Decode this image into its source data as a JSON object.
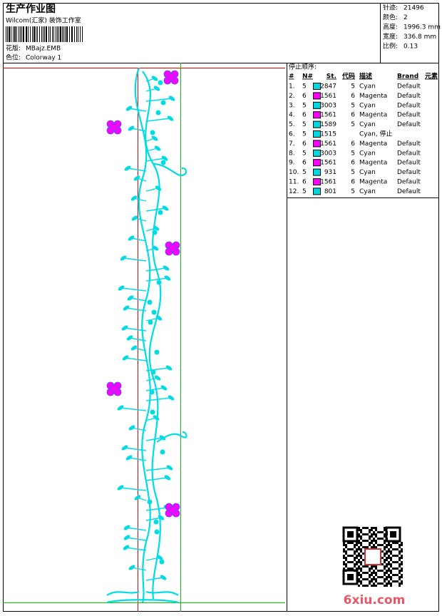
{
  "header": {
    "title": "生产作业图",
    "subtitle": "Wilcom(汇家) 装饰工作室",
    "design_file_label": "花版:",
    "design_file": "MBajz.EMB",
    "colorway_label": "色位:",
    "colorway": "Colorway 1"
  },
  "stats": [
    {
      "label": "针迹:",
      "value": "21496"
    },
    {
      "label": "颜色:",
      "value": "2"
    },
    {
      "label": "高度:",
      "value": "1996.3 mm"
    },
    {
      "label": "宽度:",
      "value": "336.8 mm"
    },
    {
      "label": "比例:",
      "value": "0.13"
    }
  ],
  "stop_sequence": {
    "title": "停止顺序:",
    "columns": [
      "#",
      "N#",
      "St.",
      "代码",
      "描述",
      "Brand",
      "元素"
    ],
    "rows": [
      {
        "no": "1.",
        "n": "5",
        "swatch": "#00d8e0",
        "st": "2847",
        "code": "5",
        "desc": "Cyan",
        "brand": "Default"
      },
      {
        "no": "2.",
        "n": "6",
        "swatch": "#ff00ff",
        "st": "1561",
        "code": "6",
        "desc": "Magenta",
        "brand": "Default"
      },
      {
        "no": "3.",
        "n": "5",
        "swatch": "#00d8e0",
        "st": "3003",
        "code": "5",
        "desc": "Cyan",
        "brand": "Default"
      },
      {
        "no": "4.",
        "n": "6",
        "swatch": "#ff00ff",
        "st": "1561",
        "code": "6",
        "desc": "Magenta",
        "brand": "Default"
      },
      {
        "no": "5.",
        "n": "5",
        "swatch": "#00d8e0",
        "st": "1589",
        "code": "5",
        "desc": "Cyan",
        "brand": "Default"
      },
      {
        "no": "6.",
        "n": "5",
        "swatch": "#00d8e0",
        "st": "1515",
        "desc": "Cyan, 停止"
      },
      {
        "no": "7.",
        "n": "6",
        "swatch": "#ff00ff",
        "st": "1561",
        "code": "6",
        "desc": "Magenta",
        "brand": "Default"
      },
      {
        "no": "8.",
        "n": "5",
        "swatch": "#00d8e0",
        "st": "3003",
        "code": "5",
        "desc": "Cyan",
        "brand": "Default"
      },
      {
        "no": "9.",
        "n": "6",
        "swatch": "#ff00ff",
        "st": "1561",
        "code": "6",
        "desc": "Magenta",
        "brand": "Default"
      },
      {
        "no": "10.",
        "n": "5",
        "swatch": "#00d8e0",
        "st": "931",
        "code": "5",
        "desc": "Cyan",
        "brand": "Default"
      },
      {
        "no": "11.",
        "n": "6",
        "swatch": "#ff00ff",
        "st": "1561",
        "code": "6",
        "desc": "Magenta",
        "brand": "Default"
      },
      {
        "no": "12.",
        "n": "5",
        "swatch": "#00d8e0",
        "st": "801",
        "code": "5",
        "desc": "Cyan",
        "brand": "Default"
      }
    ]
  },
  "watermark": "6xiu.com"
}
